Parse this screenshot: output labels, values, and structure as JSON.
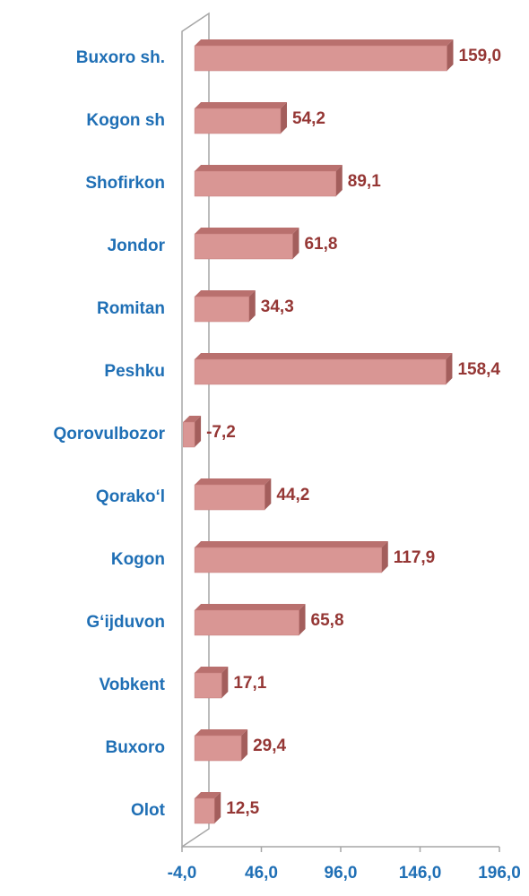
{
  "chart_data": {
    "type": "bar",
    "orientation": "horizontal",
    "categories": [
      "Buxoro sh.",
      "Kogon sh",
      "Shofirkon",
      "Jondor",
      "Romitan",
      "Peshku",
      "Qorovulbozor",
      "Qorako‘l",
      "Kogon",
      "G‘ijduvon",
      "Vobkent",
      "Buxoro",
      "Olot"
    ],
    "values": [
      159.0,
      54.2,
      89.1,
      61.8,
      34.3,
      158.4,
      -7.2,
      44.2,
      117.9,
      65.8,
      17.1,
      29.4,
      12.5
    ],
    "value_labels": [
      "159,0",
      "54,2",
      "89,1",
      "61,8",
      "34,3",
      "158,4",
      "-7,2",
      "44,2",
      "117,9",
      "65,8",
      "17,1",
      "29,4",
      "12,5"
    ],
    "color": "#d99694",
    "xlim": [
      -4,
      196
    ],
    "xticks": [
      {
        "value": -4,
        "label": "-4,0"
      },
      {
        "value": 46,
        "label": "46,0"
      },
      {
        "value": 96,
        "label": "96,0"
      },
      {
        "value": 146,
        "label": "146,0"
      },
      {
        "value": 196,
        "label": "196,0"
      }
    ],
    "grid": false
  }
}
